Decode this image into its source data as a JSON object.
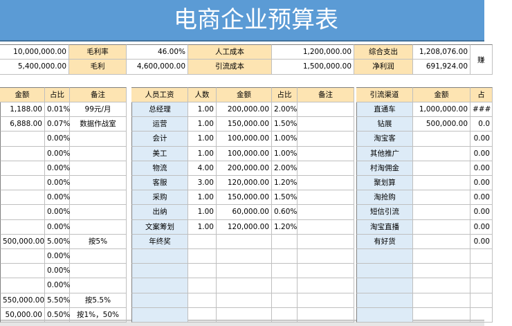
{
  "header": {
    "title": "电商企业预算表"
  },
  "summary": {
    "rows": [
      [
        "10,000,000.00",
        "毛利率",
        "46.00%",
        "人工成本",
        "1,200,000.00",
        "综合支出",
        "1,208,076.00"
      ],
      [
        "5,400,000.00",
        "毛利",
        "4,600,000.00",
        "引流成本",
        "1,500,000.00",
        "净利润",
        "691,924.00"
      ]
    ],
    "side_note": "赚"
  },
  "left_table": {
    "headers": [
      "金额",
      "占比",
      "备注"
    ],
    "rows": [
      [
        "1,188.00",
        "0.01%",
        "99元/月"
      ],
      [
        "6,888.00",
        "0.07%",
        "数据作战室"
      ],
      [
        null,
        "0.00%",
        null
      ],
      [
        null,
        "0.00%",
        null
      ],
      [
        null,
        "0.00%",
        null
      ],
      [
        null,
        "0.00%",
        null
      ],
      [
        null,
        "0.00%",
        null
      ],
      [
        null,
        "0.00%",
        null
      ],
      [
        null,
        "0.00%",
        null
      ],
      [
        "500,000.00",
        "5.00%",
        "按5%"
      ],
      [
        null,
        "0.00%",
        null
      ],
      [
        null,
        "0.00%",
        null
      ],
      [
        null,
        "0.00%",
        null
      ],
      [
        "550,000.00",
        "5.50%",
        "按5.5%"
      ],
      [
        "50,000.00",
        "0.50%",
        "按1%，50%"
      ]
    ]
  },
  "salary_table": {
    "headers": [
      "人员工资",
      "人数",
      "金额",
      "占比",
      "备注"
    ],
    "rows": [
      [
        "总经理",
        "1.00",
        "200,000.00",
        "2.00%",
        null
      ],
      [
        "运营",
        "1.00",
        "150,000.00",
        "1.50%",
        null
      ],
      [
        "会计",
        "1.00",
        "100,000.00",
        "1.00%",
        null
      ],
      [
        "美工",
        "1.00",
        "100,000.00",
        "1.00%",
        null
      ],
      [
        "物流",
        "4.00",
        "200,000.00",
        "2.00%",
        null
      ],
      [
        "客服",
        "3.00",
        "120,000.00",
        "1.20%",
        null
      ],
      [
        "采购",
        "1.00",
        "150,000.00",
        "1.50%",
        null
      ],
      [
        "出纳",
        "1.00",
        "60,000.00",
        "0.60%",
        null
      ],
      [
        "文案筹划",
        "1.00",
        "120,000.00",
        "1.20%",
        null
      ],
      [
        "年终奖",
        null,
        null,
        null,
        null
      ],
      [
        null,
        null,
        null,
        null,
        null
      ],
      [
        null,
        null,
        null,
        null,
        null
      ],
      [
        null,
        null,
        null,
        null,
        null
      ],
      [
        null,
        null,
        null,
        null,
        null
      ],
      [
        null,
        null,
        null,
        null,
        null
      ]
    ]
  },
  "traffic_table": {
    "headers": [
      "引流渠道",
      "金额",
      "占"
    ],
    "rows": [
      [
        "直通车",
        "1,000,000.00",
        "###"
      ],
      [
        "钻展",
        "500,000.00",
        "0.0"
      ],
      [
        "淘宝客",
        null,
        "0.00"
      ],
      [
        "其他推广",
        null,
        "0.00"
      ],
      [
        "村淘佣金",
        null,
        "0.00"
      ],
      [
        "聚划算",
        null,
        "0.00"
      ],
      [
        "淘抢购",
        null,
        "0.00"
      ],
      [
        "短信引流",
        null,
        "0.00"
      ],
      [
        "淘宝直播",
        null,
        "0.00"
      ],
      [
        "有好货",
        null,
        "0.00"
      ],
      [
        null,
        null,
        null
      ],
      [
        null,
        null,
        null
      ],
      [
        null,
        null,
        null
      ],
      [
        null,
        null,
        null
      ],
      [
        null,
        null,
        null
      ]
    ]
  }
}
